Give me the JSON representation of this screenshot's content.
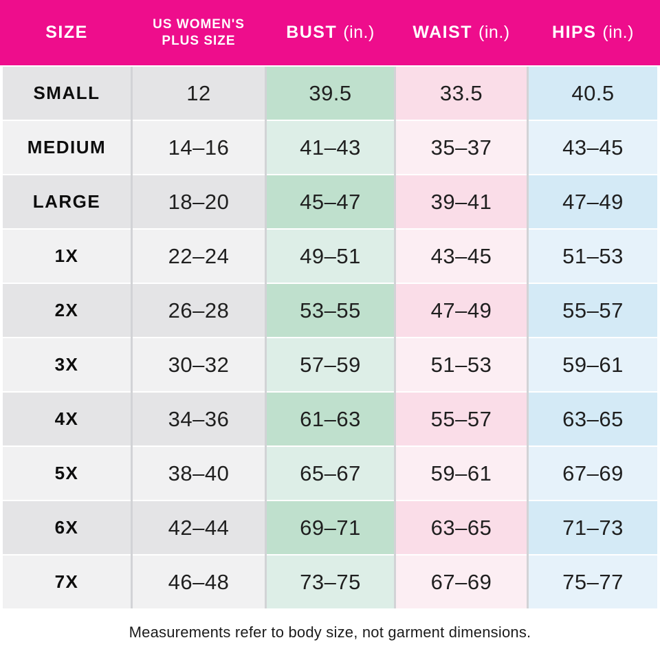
{
  "header": {
    "columns": [
      {
        "label": "SIZE"
      },
      {
        "label": "US WOMEN'S",
        "label2": "PLUS SIZE"
      },
      {
        "label": "BUST",
        "suffix": "(in.)"
      },
      {
        "label": "WAIST",
        "suffix": "(in.)"
      },
      {
        "label": "HIPS",
        "suffix": "(in.)"
      }
    ]
  },
  "chart_data": {
    "type": "table",
    "columns": [
      "SIZE",
      "US WOMEN'S PLUS SIZE",
      "BUST (in.)",
      "WAIST (in.)",
      "HIPS (in.)"
    ],
    "rows": [
      [
        "SMALL",
        "12",
        "39.5",
        "33.5",
        "40.5"
      ],
      [
        "MEDIUM",
        "14–16",
        "41–43",
        "35–37",
        "43–45"
      ],
      [
        "LARGE",
        "18–20",
        "45–47",
        "39–41",
        "47–49"
      ],
      [
        "1X",
        "22–24",
        "49–51",
        "43–45",
        "51–53"
      ],
      [
        "2X",
        "26–28",
        "53–55",
        "47–49",
        "55–57"
      ],
      [
        "3X",
        "30–32",
        "57–59",
        "51–53",
        "59–61"
      ],
      [
        "4X",
        "34–36",
        "61–63",
        "55–57",
        "63–65"
      ],
      [
        "5X",
        "38–40",
        "65–67",
        "59–61",
        "67–69"
      ],
      [
        "6X",
        "42–44",
        "69–71",
        "63–65",
        "71–73"
      ],
      [
        "7X",
        "46–48",
        "73–75",
        "67–69",
        "75–77"
      ]
    ]
  },
  "footnote": "Measurements refer to body size, not garment dimensions.",
  "colors": {
    "magenta": "#ee0d8c",
    "gray_dark": "#e4e4e6",
    "gray_light": "#f1f1f2",
    "green_dark": "#bfe0cd",
    "green_light": "#ddeee7",
    "pink_light": "#fceef3",
    "blue_dark": "#d4eaf6",
    "blue_light": "#e6f2fa",
    "divider": "#d2d3d6",
    "text": "#1f1f1f",
    "label": "#0d0d0d"
  }
}
